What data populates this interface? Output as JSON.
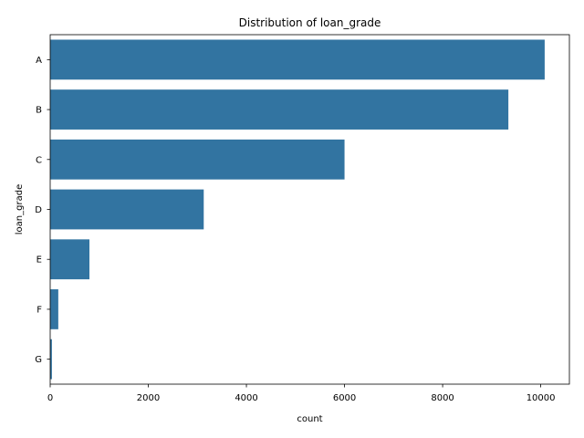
{
  "chart_data": {
    "type": "bar",
    "orientation": "horizontal",
    "title": "Distribution of loan_grade",
    "xlabel": "count",
    "ylabel": "loan_grade",
    "categories": [
      "A",
      "B",
      "C",
      "D",
      "E",
      "F",
      "G"
    ],
    "values": [
      10080,
      9340,
      6000,
      3130,
      800,
      165,
      35
    ],
    "xlim": [
      0,
      10584
    ],
    "xticks": [
      0,
      2000,
      4000,
      6000,
      8000,
      10000
    ],
    "grid": false,
    "legend": "none",
    "bar_color": "#3274a1"
  }
}
